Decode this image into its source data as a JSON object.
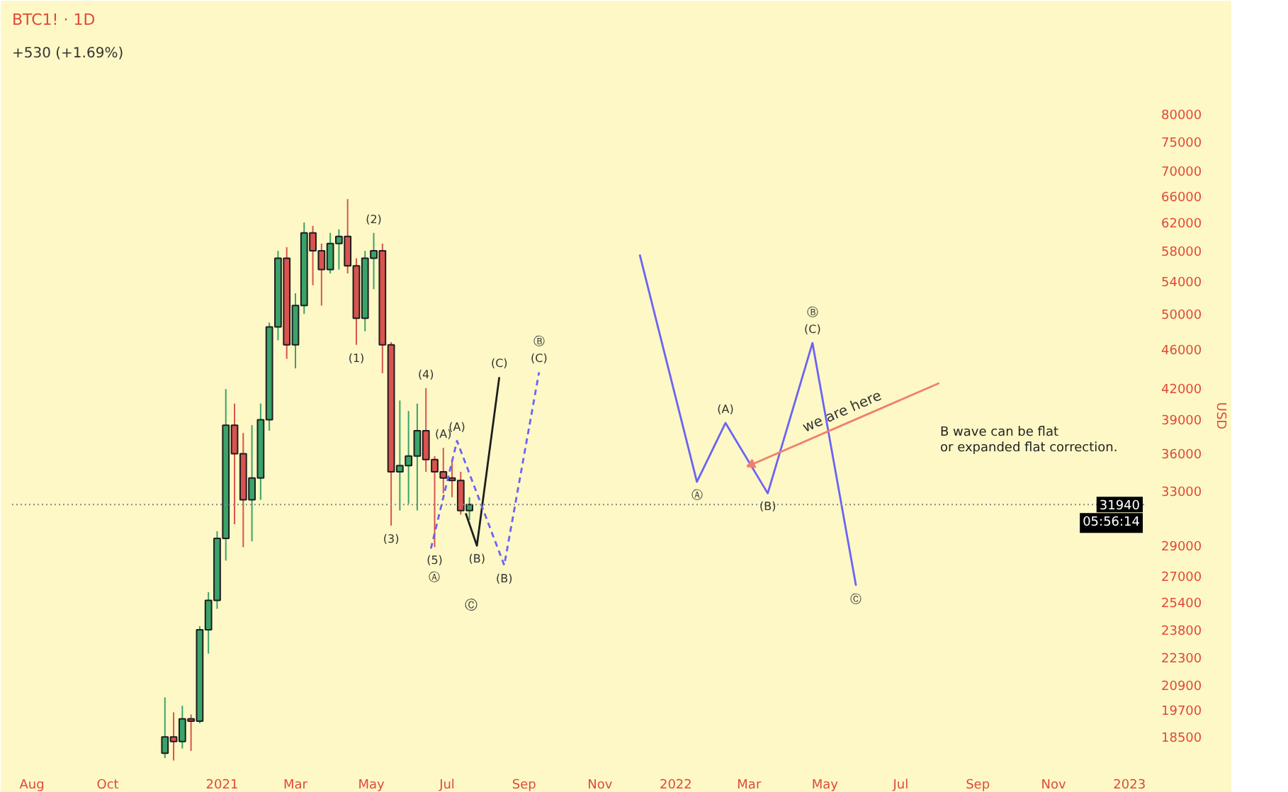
{
  "chart_data": {
    "type": "candlestick",
    "title": "BTC1! · 1D",
    "subtitle": "+530 (+1.69%)",
    "ylabel": "USD",
    "x": [
      "2020-11-16",
      "2020-11-23",
      "2020-11-30",
      "2020-12-07",
      "2020-12-14",
      "2020-12-21",
      "2020-12-28",
      "2021-01-04",
      "2021-01-11",
      "2021-01-18",
      "2021-01-25",
      "2021-02-01",
      "2021-02-08",
      "2021-02-15",
      "2021-02-22",
      "2021-03-01",
      "2021-03-08",
      "2021-03-15",
      "2021-03-22",
      "2021-03-29",
      "2021-04-05",
      "2021-04-12",
      "2021-04-19",
      "2021-04-26",
      "2021-05-03",
      "2021-05-10",
      "2021-05-17",
      "2021-05-24",
      "2021-05-31",
      "2021-06-07",
      "2021-06-14",
      "2021-06-21",
      "2021-06-28",
      "2021-07-05",
      "2021-07-12",
      "2021-07-19"
    ],
    "ohlc": [
      [
        17800,
        20300,
        17600,
        18500
      ],
      [
        18500,
        19600,
        17500,
        18300
      ],
      [
        18300,
        19900,
        18000,
        19300
      ],
      [
        19300,
        19500,
        17900,
        19200
      ],
      [
        19200,
        24000,
        19100,
        23800
      ],
      [
        23800,
        26000,
        22500,
        25500
      ],
      [
        25500,
        30000,
        25000,
        29500
      ],
      [
        29500,
        41900,
        28000,
        38500
      ],
      [
        38500,
        40500,
        30500,
        36000
      ],
      [
        36000,
        37800,
        28900,
        32300
      ],
      [
        32300,
        38500,
        29300,
        34000
      ],
      [
        34000,
        40500,
        32300,
        39000
      ],
      [
        39000,
        49000,
        38000,
        48500
      ],
      [
        48500,
        58000,
        47000,
        57000
      ],
      [
        57000,
        58500,
        45000,
        46500
      ],
      [
        46500,
        52500,
        44000,
        51000
      ],
      [
        51000,
        62000,
        50000,
        60500
      ],
      [
        60500,
        61500,
        53500,
        58000
      ],
      [
        58000,
        59000,
        51000,
        55500
      ],
      [
        55500,
        60500,
        55000,
        59000
      ],
      [
        59000,
        61000,
        55500,
        60000
      ],
      [
        60000,
        65500,
        55000,
        56000
      ],
      [
        56000,
        57000,
        46500,
        49500
      ],
      [
        49500,
        58000,
        48000,
        57000
      ],
      [
        57000,
        60500,
        53000,
        58000
      ],
      [
        58000,
        59000,
        43500,
        46500
      ],
      [
        46500,
        46800,
        30400,
        34500
      ],
      [
        34500,
        40800,
        31500,
        35000
      ],
      [
        35000,
        39800,
        32000,
        35800
      ],
      [
        35800,
        40500,
        31500,
        38000
      ],
      [
        38000,
        42000,
        34500,
        35500
      ],
      [
        35500,
        35800,
        28900,
        34500
      ],
      [
        34500,
        36500,
        32800,
        34000
      ],
      [
        34000,
        35500,
        32500,
        33800
      ],
      [
        33800,
        34500,
        31200,
        31500
      ],
      [
        31500,
        32500,
        30800,
        31940
      ]
    ],
    "color": "#1e1e1e",
    "series": [
      {
        "type": "line",
        "x": [
          "2021-07-16",
          "2021-07-25",
          "2021-08-12"
        ],
        "values": [
          31300,
          29000,
          43100
        ],
        "color": "#1e1e1e",
        "line_style": "solid"
      },
      {
        "type": "line",
        "x": [
          "2021-06-18",
          "2021-07-09",
          "2021-08-16",
          "2021-09-13"
        ],
        "values": [
          28800,
          37100,
          27700,
          43600
        ],
        "color": "#6b63f5",
        "line_style": "dashed"
      },
      {
        "type": "line",
        "x": [
          "2021-12-03",
          "2022-01-18",
          "2022-02-10",
          "2022-03-16",
          "2022-04-21",
          "2022-05-26"
        ],
        "values": [
          57500,
          33700,
          38700,
          32800,
          46700,
          26400
        ],
        "color": "#6b63f5",
        "line_style": "solid"
      },
      {
        "type": "line",
        "name": "we are here",
        "x": [
          "2022-03-03",
          "2022-08-01"
        ],
        "values": [
          35100,
          42500
        ],
        "color": "#f0806c",
        "line_style": "solid"
      }
    ],
    "xlim": [
      "2020-07-16",
      "2023-01-14"
    ],
    "xticks": [
      {
        "value": "2020-08-01",
        "label": "Aug"
      },
      {
        "value": "2020-10-01",
        "label": "Oct"
      },
      {
        "value": "2021-01-01",
        "label": "2021"
      },
      {
        "value": "2021-03-01",
        "label": "Mar"
      },
      {
        "value": "2021-05-01",
        "label": "May"
      },
      {
        "value": "2021-07-01",
        "label": "Jul"
      },
      {
        "value": "2021-09-01",
        "label": "Sep"
      },
      {
        "value": "2021-11-01",
        "label": "Nov"
      },
      {
        "value": "2022-01-01",
        "label": "2022"
      },
      {
        "value": "2022-03-01",
        "label": "Mar"
      },
      {
        "value": "2022-05-01",
        "label": "May"
      },
      {
        "value": "2022-07-01",
        "label": "Jul"
      },
      {
        "value": "2022-09-01",
        "label": "Sep"
      },
      {
        "value": "2022-11-01",
        "label": "Nov"
      },
      {
        "value": "2023-01-01",
        "label": "2023"
      }
    ],
    "ylim": [
      17400,
      89000
    ],
    "log": true,
    "grid": false,
    "yticks": [
      18500,
      19700,
      20900,
      22300,
      23800,
      25400,
      27000,
      29000,
      33000,
      36000,
      39000,
      42000,
      46000,
      50000,
      54000,
      58000,
      62000,
      66000,
      70000,
      75000,
      80000
    ],
    "ref_lines": [
      {
        "axis": "y",
        "value": 31940,
        "label": "31940",
        "color": "#888888",
        "line_style": "dotted"
      }
    ],
    "annotations": [
      "B wave can be flat\nor expanded flat correction.",
      "05:56:14",
      "Ⓒ",
      {
        "text": "(1)",
        "x": "2021-04-19",
        "y": 46500
      },
      {
        "text": "(2)",
        "x": "2021-05-03",
        "y": 60500
      },
      {
        "text": "(3)",
        "x": "2021-05-17",
        "y": 30400
      },
      {
        "text": "(4)",
        "x": "2021-06-14",
        "y": 42000
      },
      {
        "text": "(5)",
        "x": "2021-06-21",
        "y": 28900
      },
      {
        "text": "Ⓐ",
        "x": "2021-06-21",
        "y": 28900
      },
      {
        "text": "(A)",
        "x": "2021-06-28",
        "y": 36500
      },
      {
        "text": "(A)",
        "x": "2021-07-09",
        "y": 37100
      },
      {
        "text": "(B)",
        "x": "2021-07-25",
        "y": 29000
      },
      {
        "text": "(B)",
        "x": "2021-08-16",
        "y": 27700
      },
      {
        "text": "(C)",
        "x": "2021-08-12",
        "y": 43100
      },
      {
        "text": "(C)",
        "x": "2021-09-13",
        "y": 43600
      },
      {
        "text": "Ⓑ",
        "x": "2021-09-13",
        "y": 43600
      },
      {
        "text": "Ⓐ",
        "x": "2022-01-18",
        "y": 33700
      },
      {
        "text": "(A)",
        "x": "2022-02-10",
        "y": 38700
      },
      {
        "text": "(B)",
        "x": "2022-03-16",
        "y": 32800
      },
      {
        "text": "(C)",
        "x": "2022-04-21",
        "y": 46700
      },
      {
        "text": "Ⓑ",
        "x": "2022-04-21",
        "y": 46700
      },
      {
        "text": "Ⓒ",
        "x": "2022-05-26",
        "y": 26400
      }
    ]
  }
}
